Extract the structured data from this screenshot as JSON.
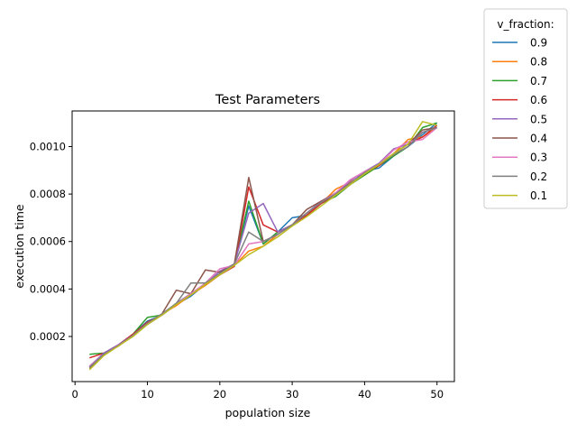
{
  "chart_data": {
    "type": "line",
    "title": "Test Parameters",
    "xlabel": "population size",
    "ylabel": "execution time",
    "xlim": [
      -0.4,
      52.4
    ],
    "ylim": [
      1e-05,
      0.00115
    ],
    "xticks": [
      0,
      10,
      20,
      30,
      40,
      50
    ],
    "xtick_labels": [
      "0",
      "10",
      "20",
      "30",
      "40",
      "50"
    ],
    "yticks": [
      0.0002,
      0.0004,
      0.0006,
      0.0008,
      0.001
    ],
    "ytick_labels": [
      "0.0002",
      "0.0004",
      "0.0006",
      "0.0008",
      "0.0010"
    ],
    "grid": false,
    "legend": {
      "title": "v_fraction:",
      "placement": "outside-right"
    },
    "x": [
      2,
      4,
      6,
      8,
      10,
      12,
      14,
      16,
      18,
      20,
      22,
      24,
      26,
      28,
      30,
      32,
      34,
      36,
      38,
      40,
      42,
      44,
      46,
      48,
      50
    ],
    "series": [
      {
        "name": "0.9",
        "color": "#1f77b4",
        "values": [
          7.5e-05,
          0.000125,
          0.000165,
          0.00021,
          0.000265,
          0.00029,
          0.000335,
          0.00037,
          0.00042,
          0.000465,
          0.000505,
          0.00075,
          0.00059,
          0.00064,
          0.0007,
          0.00071,
          0.00077,
          0.00079,
          0.00084,
          0.000895,
          0.00091,
          0.00096,
          0.001,
          0.00105,
          0.0011
        ]
      },
      {
        "name": "0.8",
        "color": "#ff7f0e",
        "values": [
          7e-05,
          0.000125,
          0.00016,
          0.000205,
          0.000255,
          0.000295,
          0.00033,
          0.000375,
          0.000415,
          0.00046,
          0.0005,
          0.00056,
          0.00058,
          0.00063,
          0.00067,
          0.00072,
          0.00076,
          0.00082,
          0.00085,
          0.00088,
          0.00092,
          0.00097,
          0.00103,
          0.00104,
          0.00108
        ]
      },
      {
        "name": "0.7",
        "color": "#2ca02c",
        "values": [
          0.000125,
          0.00013,
          0.00016,
          0.00021,
          0.00028,
          0.00029,
          0.00034,
          0.00038,
          0.00042,
          0.00046,
          0.0005,
          0.00077,
          0.00059,
          0.00064,
          0.00067,
          0.00071,
          0.00076,
          0.00079,
          0.00084,
          0.00088,
          0.00092,
          0.00096,
          0.001,
          0.00108,
          0.0011
        ]
      },
      {
        "name": "0.6",
        "color": "#d62728",
        "values": [
          0.00011,
          0.00013,
          0.000165,
          0.00021,
          0.00026,
          0.00029,
          0.000335,
          0.00038,
          0.00042,
          0.00046,
          0.000495,
          0.00083,
          0.00067,
          0.00064,
          0.00067,
          0.00071,
          0.00076,
          0.0008,
          0.00084,
          0.00089,
          0.00092,
          0.00097,
          0.00101,
          0.00104,
          0.00109
        ]
      },
      {
        "name": "0.5",
        "color": "#9467bd",
        "values": [
          7.5e-05,
          0.00013,
          0.000165,
          0.000205,
          0.00025,
          0.00029,
          0.00034,
          0.00038,
          0.00042,
          0.000475,
          0.000505,
          0.00072,
          0.00076,
          0.00064,
          0.00067,
          0.00072,
          0.00077,
          0.0008,
          0.000855,
          0.000895,
          0.00093,
          0.00099,
          0.00101,
          0.00106,
          0.00108
        ]
      },
      {
        "name": "0.4",
        "color": "#8c564b",
        "values": [
          6.5e-05,
          0.000125,
          0.00016,
          0.000205,
          0.000255,
          0.000295,
          0.000395,
          0.00038,
          0.00048,
          0.00047,
          0.000505,
          0.00087,
          0.0006,
          0.00063,
          0.00067,
          0.000735,
          0.00077,
          0.000805,
          0.000845,
          0.000885,
          0.000925,
          0.00097,
          0.00101,
          0.00107,
          0.00108
        ]
      },
      {
        "name": "0.3",
        "color": "#e377c2",
        "values": [
          7.5e-05,
          0.000125,
          0.00016,
          0.000205,
          0.000255,
          0.000295,
          0.000335,
          0.00038,
          0.000425,
          0.000485,
          0.0005,
          0.00059,
          0.0006,
          0.00063,
          0.00067,
          0.00072,
          0.000765,
          0.000805,
          0.00086,
          0.000895,
          0.000925,
          0.000985,
          0.00102,
          0.00103,
          0.00108
        ]
      },
      {
        "name": "0.2",
        "color": "#7f7f7f",
        "values": [
          7e-05,
          0.000125,
          0.00016,
          0.000205,
          0.000255,
          0.000295,
          0.00034,
          0.000425,
          0.000425,
          0.000465,
          0.000505,
          0.00064,
          0.0006,
          0.00063,
          0.00067,
          0.00072,
          0.000765,
          0.0008,
          0.000845,
          0.00089,
          0.000925,
          0.000965,
          0.001,
          0.00106,
          0.00108
        ]
      },
      {
        "name": "0.1",
        "color": "#bcbd22",
        "values": [
          6e-05,
          0.00012,
          0.00016,
          0.0002,
          0.00025,
          0.00029,
          0.000335,
          0.000375,
          0.00042,
          0.00046,
          0.0005,
          0.000545,
          0.00058,
          0.00062,
          0.000665,
          0.000705,
          0.00075,
          0.000795,
          0.00084,
          0.000885,
          0.000925,
          0.00097,
          0.00101,
          0.001105,
          0.00109
        ]
      }
    ]
  }
}
